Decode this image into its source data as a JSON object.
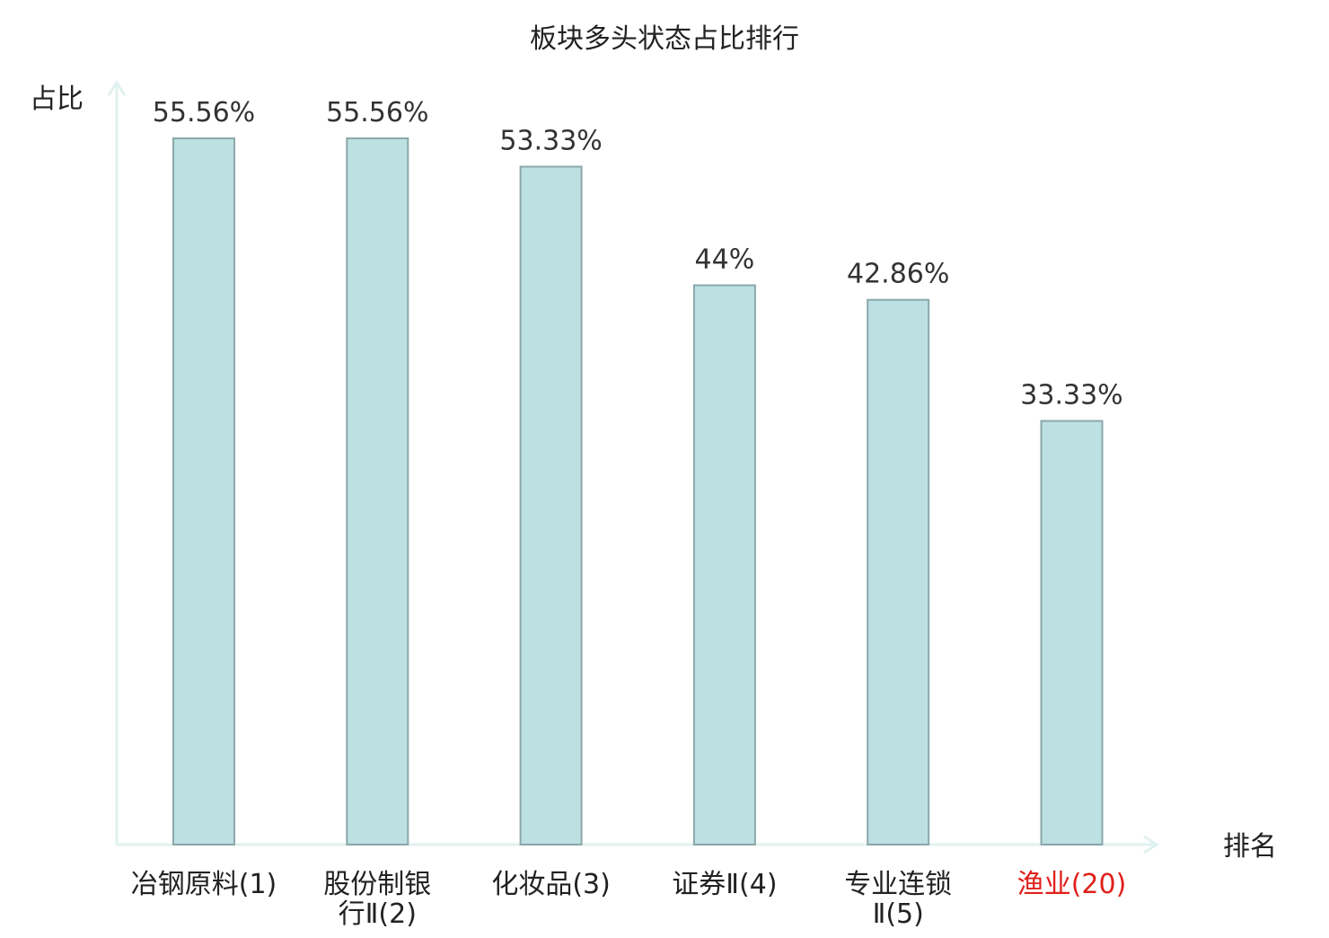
{
  "chart_data": {
    "type": "bar",
    "title": "板块多头状态占比排行",
    "ylabel": "占比",
    "xlabel": "排名",
    "categories": [
      {
        "name": "冶钢原料",
        "rank": "(1)",
        "lines": [
          "冶钢原料(1)"
        ],
        "highlight": false
      },
      {
        "name": "股份制银行Ⅱ",
        "rank": "(2)",
        "lines": [
          "股份制银",
          "行Ⅱ(2)"
        ],
        "highlight": false
      },
      {
        "name": "化妆品",
        "rank": "(3)",
        "lines": [
          "化妆品(3)"
        ],
        "highlight": false
      },
      {
        "name": "证券Ⅱ",
        "rank": "(4)",
        "lines": [
          "证券Ⅱ(4)"
        ],
        "highlight": false
      },
      {
        "name": "专业连锁Ⅱ",
        "rank": "(5)",
        "lines": [
          "专业连锁",
          "Ⅱ(5)"
        ],
        "highlight": false
      },
      {
        "name": "渔业",
        "rank": "(20)",
        "lines": [
          "渔业(20)"
        ],
        "highlight": true
      }
    ],
    "values": [
      55.56,
      55.56,
      53.33,
      44,
      42.86,
      33.33
    ],
    "value_labels": [
      "55.56%",
      "55.56%",
      "53.33%",
      "44%",
      "42.86%",
      "33.33%"
    ],
    "ylim": [
      0,
      60
    ],
    "grid": false,
    "legend": "none",
    "colors": {
      "bar_fill": "#bde0e2",
      "bar_stroke": "#8ba8aa",
      "axis": "#e0f2ef",
      "highlight_text": "#e0201b",
      "normal_text": "#222222",
      "value_text": "#333333"
    }
  }
}
